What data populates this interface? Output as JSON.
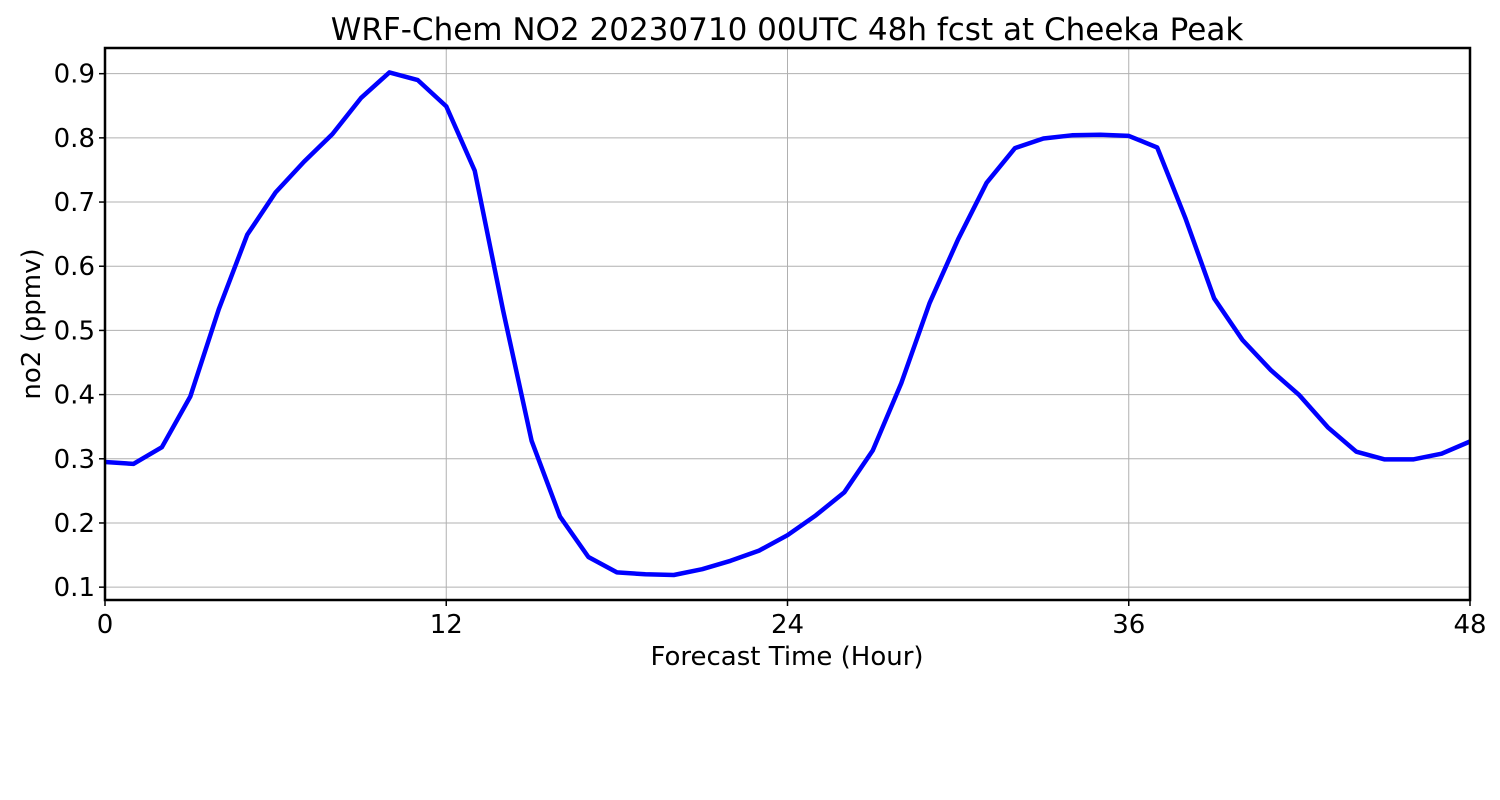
{
  "chart_data": {
    "type": "line",
    "title": "WRF-Chem NO2  20230710 00UTC 48h fcst at Cheeka Peak",
    "xlabel": "Forecast Time (Hour)",
    "ylabel": "no2  (ppmv)",
    "xlim": [
      0,
      48
    ],
    "ylim": [
      0.08,
      0.94
    ],
    "x_ticks": [
      0,
      12,
      24,
      36,
      48
    ],
    "y_ticks": [
      0.1,
      0.2,
      0.3,
      0.4,
      0.5,
      0.6,
      0.7,
      0.8,
      0.9
    ],
    "x_tick_labels": [
      "0",
      "12",
      "24",
      "36",
      "48"
    ],
    "y_tick_labels": [
      "0.1",
      "0.2",
      "0.3",
      "0.4",
      "0.5",
      "0.6",
      "0.7",
      "0.8",
      "0.9"
    ],
    "grid": true,
    "series": [
      {
        "color": "#0000ff",
        "x": [
          0,
          1,
          2,
          3,
          4,
          5,
          6,
          7,
          8,
          9,
          10,
          11,
          12,
          13,
          14,
          15,
          16,
          17,
          18,
          19,
          20,
          21,
          22,
          23,
          24,
          25,
          26,
          27,
          28,
          29,
          30,
          31,
          32,
          33,
          34,
          35,
          36,
          37,
          38,
          39,
          40,
          41,
          42,
          43,
          44,
          45,
          46,
          47,
          48
        ],
        "values": [
          0.295,
          0.292,
          0.318,
          0.397,
          0.533,
          0.649,
          0.715,
          0.763,
          0.806,
          0.862,
          0.902,
          0.89,
          0.849,
          0.749,
          0.531,
          0.328,
          0.21,
          0.147,
          0.123,
          0.12,
          0.119,
          0.128,
          0.141,
          0.157,
          0.181,
          0.212,
          0.248,
          0.313,
          0.418,
          0.543,
          0.642,
          0.73,
          0.784,
          0.799,
          0.804,
          0.805,
          0.803,
          0.785,
          0.674,
          0.55,
          0.485,
          0.438,
          0.399,
          0.349,
          0.311,
          0.299,
          0.299,
          0.308,
          0.327
        ]
      }
    ]
  }
}
